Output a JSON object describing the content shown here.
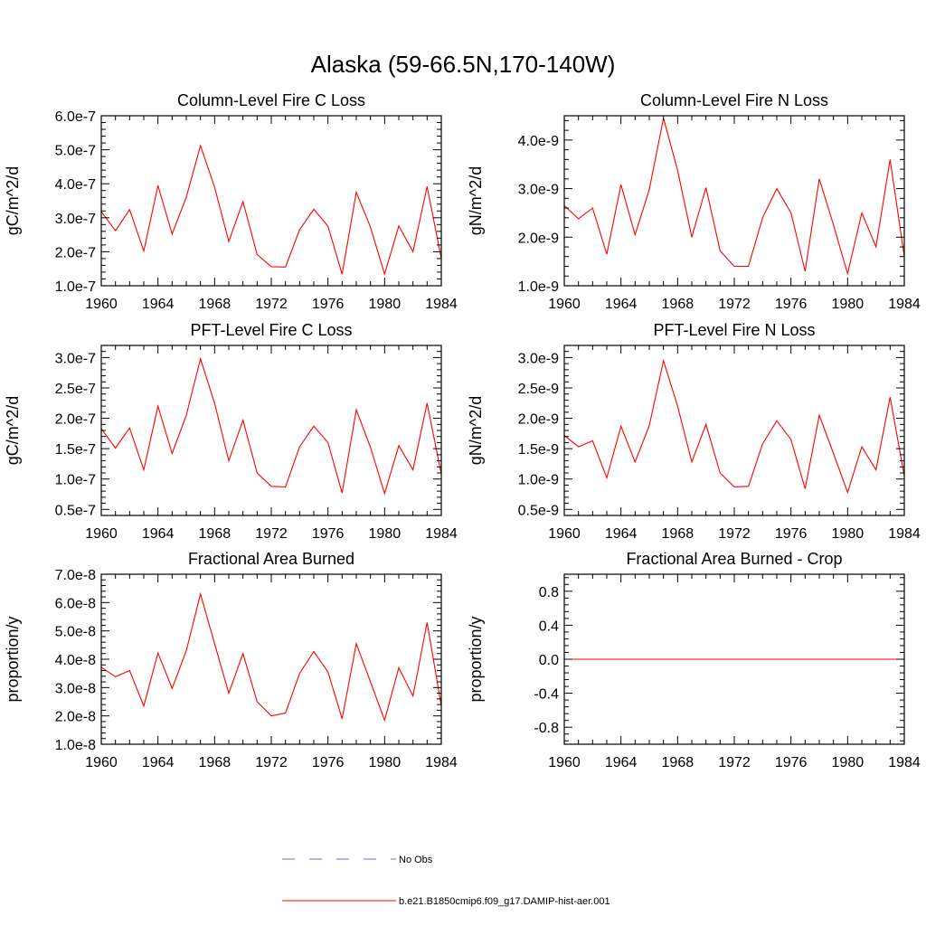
{
  "title": "Alaska (59-66.5N,170-140W)",
  "colors": {
    "series": "#ff0000",
    "obs": "#6b6bd6",
    "axis": "#000000"
  },
  "legend": {
    "entries": [
      {
        "label": "No Obs",
        "style": "dashed",
        "color": "#6b6bd6"
      },
      {
        "label": "b.e21.B1850cmip6.f09_g17.DAMIP-hist-aer.001",
        "style": "solid",
        "color": "#ff0000"
      }
    ]
  },
  "chart_data": [
    {
      "type": "line",
      "title": "Column-Level Fire C Loss",
      "ylabel": "gC/m^2/d",
      "xlim": [
        1960,
        1984
      ],
      "ylim": [
        1e-07,
        6e-07
      ],
      "xticks": [
        1960,
        1964,
        1968,
        1972,
        1976,
        1980,
        1984
      ],
      "xtick_labels": [
        "1960",
        "1964",
        "1968",
        "1972",
        "1976",
        "1980",
        "1984"
      ],
      "yticks": [
        1e-07,
        2e-07,
        3e-07,
        4e-07,
        5e-07,
        6e-07
      ],
      "ytick_labels": [
        "1.0e-7",
        "2.0e-7",
        "3.0e-7",
        "4.0e-7",
        "5.0e-7",
        "6.0e-7"
      ],
      "x": [
        1960,
        1961,
        1962,
        1963,
        1964,
        1965,
        1966,
        1967,
        1968,
        1969,
        1970,
        1971,
        1972,
        1973,
        1974,
        1975,
        1976,
        1977,
        1978,
        1979,
        1980,
        1981,
        1982,
        1983,
        1984
      ],
      "series": [
        {
          "values": [
            3.18e-07,
            2.62e-07,
            3.24e-07,
            2.02e-07,
            3.95e-07,
            2.52e-07,
            3.6e-07,
            5.12e-07,
            3.9e-07,
            2.3e-07,
            3.48e-07,
            1.92e-07,
            1.56e-07,
            1.55e-07,
            2.65e-07,
            3.25e-07,
            2.75e-07,
            1.34e-07,
            3.75e-07,
            2.72e-07,
            1.34e-07,
            2.76e-07,
            2e-07,
            3.92e-07,
            1.8e-07
          ]
        }
      ]
    },
    {
      "type": "line",
      "title": "Column-Level Fire N Loss",
      "ylabel": "gN/m^2/d",
      "xlim": [
        1960,
        1984
      ],
      "ylim": [
        1e-09,
        4.5e-09
      ],
      "xticks": [
        1960,
        1964,
        1968,
        1972,
        1976,
        1980,
        1984
      ],
      "xtick_labels": [
        "1960",
        "1964",
        "1968",
        "1972",
        "1976",
        "1980",
        "1984"
      ],
      "yticks": [
        1e-09,
        2e-09,
        3e-09,
        4e-09
      ],
      "ytick_labels": [
        "1.0e-9",
        "2.0e-9",
        "3.0e-9",
        "4.0e-9"
      ],
      "x": [
        1960,
        1961,
        1962,
        1963,
        1964,
        1965,
        1966,
        1967,
        1968,
        1969,
        1970,
        1971,
        1972,
        1973,
        1974,
        1975,
        1976,
        1977,
        1978,
        1979,
        1980,
        1981,
        1982,
        1983,
        1984
      ],
      "series": [
        {
          "values": [
            2.65e-09,
            2.38e-09,
            2.6e-09,
            1.65e-09,
            3.08e-09,
            2.05e-09,
            2.98e-09,
            4.45e-09,
            3.38e-09,
            2e-09,
            3.02e-09,
            1.72e-09,
            1.4e-09,
            1.4e-09,
            2.4e-09,
            3e-09,
            2.5e-09,
            1.3e-09,
            3.2e-09,
            2.25e-09,
            1.25e-09,
            2.5e-09,
            1.8e-09,
            3.6e-09,
            1.6e-09
          ]
        }
      ]
    },
    {
      "type": "line",
      "title": "PFT-Level Fire C Loss",
      "ylabel": "gC/m^2/d",
      "xlim": [
        1960,
        1984
      ],
      "ylim": [
        4e-08,
        3.2e-07
      ],
      "xticks": [
        1960,
        1964,
        1968,
        1972,
        1976,
        1980,
        1984
      ],
      "xtick_labels": [
        "1960",
        "1964",
        "1968",
        "1972",
        "1976",
        "1980",
        "1984"
      ],
      "yticks": [
        5e-08,
        1e-07,
        1.5e-07,
        2e-07,
        2.5e-07,
        3e-07
      ],
      "ytick_labels": [
        "0.5e-7",
        "1.0e-7",
        "1.5e-7",
        "2.0e-7",
        "2.5e-7",
        "3.0e-7"
      ],
      "x": [
        1960,
        1961,
        1962,
        1963,
        1964,
        1965,
        1966,
        1967,
        1968,
        1969,
        1970,
        1971,
        1972,
        1973,
        1974,
        1975,
        1976,
        1977,
        1978,
        1979,
        1980,
        1981,
        1982,
        1983,
        1984
      ],
      "series": [
        {
          "values": [
            1.83e-07,
            1.51e-07,
            1.84e-07,
            1.15e-07,
            2.2e-07,
            1.42e-07,
            2.05e-07,
            2.98e-07,
            2.25e-07,
            1.3e-07,
            1.97e-07,
            1.1e-07,
            8.8e-08,
            8.7e-08,
            1.53e-07,
            1.87e-07,
            1.6e-07,
            7.7e-08,
            2.14e-07,
            1.52e-07,
            7.6e-08,
            1.55e-07,
            1.15e-07,
            2.25e-07,
            1.08e-07
          ]
        }
      ]
    },
    {
      "type": "line",
      "title": "PFT-Level Fire N Loss",
      "ylabel": "gN/m^2/d",
      "xlim": [
        1960,
        1984
      ],
      "ylim": [
        4e-10,
        3.2e-09
      ],
      "xticks": [
        1960,
        1964,
        1968,
        1972,
        1976,
        1980,
        1984
      ],
      "xtick_labels": [
        "1960",
        "1964",
        "1968",
        "1972",
        "1976",
        "1980",
        "1984"
      ],
      "yticks": [
        5e-10,
        1e-09,
        1.5e-09,
        2e-09,
        2.5e-09,
        3e-09
      ],
      "ytick_labels": [
        "0.5e-9",
        "1.0e-9",
        "1.5e-9",
        "2.0e-9",
        "2.5e-9",
        "3.0e-9"
      ],
      "x": [
        1960,
        1961,
        1962,
        1963,
        1964,
        1965,
        1966,
        1967,
        1968,
        1969,
        1970,
        1971,
        1972,
        1973,
        1974,
        1975,
        1976,
        1977,
        1978,
        1979,
        1980,
        1981,
        1982,
        1983,
        1984
      ],
      "series": [
        {
          "values": [
            1.72e-09,
            1.53e-09,
            1.63e-09,
            1.02e-09,
            1.87e-09,
            1.28e-09,
            1.88e-09,
            2.95e-09,
            2.2e-09,
            1.28e-09,
            1.9e-09,
            1.1e-09,
            8.7e-10,
            8.8e-10,
            1.58e-09,
            1.96e-09,
            1.65e-09,
            8.4e-10,
            2.05e-09,
            1.42e-09,
            7.8e-10,
            1.53e-09,
            1.15e-09,
            2.35e-09,
            1.05e-09
          ]
        }
      ]
    },
    {
      "type": "line",
      "title": "Fractional Area Burned",
      "ylabel": "proportion/y",
      "xlim": [
        1960,
        1984
      ],
      "ylim": [
        1e-08,
        7e-08
      ],
      "xticks": [
        1960,
        1964,
        1968,
        1972,
        1976,
        1980,
        1984
      ],
      "xtick_labels": [
        "1960",
        "1964",
        "1968",
        "1972",
        "1976",
        "1980",
        "1984"
      ],
      "yticks": [
        1e-08,
        2e-08,
        3e-08,
        4e-08,
        5e-08,
        6e-08,
        7e-08
      ],
      "ytick_labels": [
        "1.0e-8",
        "2.0e-8",
        "3.0e-8",
        "4.0e-8",
        "5.0e-8",
        "6.0e-8",
        "7.0e-8"
      ],
      "x": [
        1960,
        1961,
        1962,
        1963,
        1964,
        1965,
        1966,
        1967,
        1968,
        1969,
        1970,
        1971,
        1972,
        1973,
        1974,
        1975,
        1976,
        1977,
        1978,
        1979,
        1980,
        1981,
        1982,
        1983,
        1984
      ],
      "series": [
        {
          "values": [
            3.72e-08,
            3.38e-08,
            3.6e-08,
            2.35e-08,
            4.22e-08,
            2.97e-08,
            4.3e-08,
            6.3e-08,
            4.55e-08,
            2.8e-08,
            4.2e-08,
            2.5e-08,
            2e-08,
            2.1e-08,
            3.5e-08,
            4.27e-08,
            3.55e-08,
            1.9e-08,
            4.55e-08,
            3.2e-08,
            1.85e-08,
            3.7e-08,
            2.7e-08,
            5.3e-08,
            2.35e-08
          ]
        }
      ]
    },
    {
      "type": "line",
      "title": "Fractional Area Burned - Crop",
      "ylabel": "proportion/y",
      "xlim": [
        1960,
        1984
      ],
      "ylim": [
        -1.0,
        1.0
      ],
      "xticks": [
        1960,
        1964,
        1968,
        1972,
        1976,
        1980,
        1984
      ],
      "xtick_labels": [
        "1960",
        "1964",
        "1968",
        "1972",
        "1976",
        "1980",
        "1984"
      ],
      "yticks": [
        -0.8,
        -0.4,
        0.0,
        0.4,
        0.8
      ],
      "ytick_labels": [
        "-0.8",
        "-0.4",
        "0.0",
        "0.4",
        "0.8"
      ],
      "x": [
        1960,
        1961,
        1962,
        1963,
        1964,
        1965,
        1966,
        1967,
        1968,
        1969,
        1970,
        1971,
        1972,
        1973,
        1974,
        1975,
        1976,
        1977,
        1978,
        1979,
        1980,
        1981,
        1982,
        1983,
        1984
      ],
      "series": [
        {
          "values": [
            0,
            0,
            0,
            0,
            0,
            0,
            0,
            0,
            0,
            0,
            0,
            0,
            0,
            0,
            0,
            0,
            0,
            0,
            0,
            0,
            0,
            0,
            0,
            0,
            0
          ]
        }
      ]
    }
  ]
}
